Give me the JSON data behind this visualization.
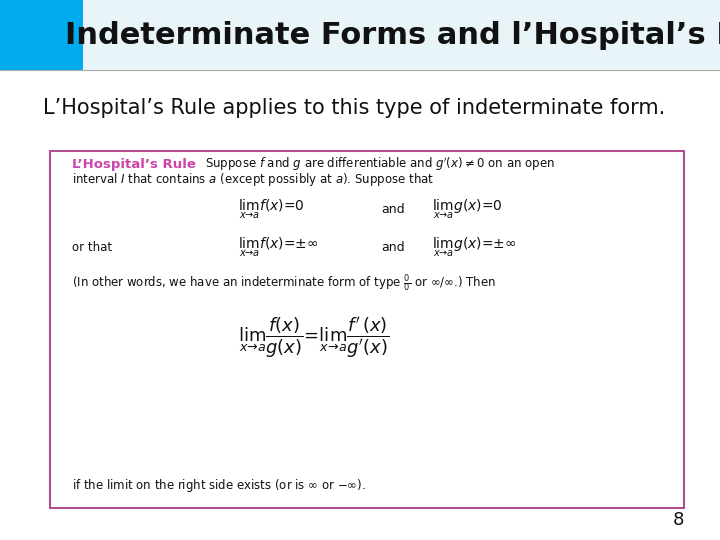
{
  "title": "Indeterminate Forms and l’Hospital’s Rule",
  "subtitle": "L’Hospital’s Rule applies to this type of indeterminate form.",
  "title_bg_color": "#e8f4f8",
  "title_accent_color": "#00aced",
  "title_stripe_color": "#00aced",
  "page_number": "8",
  "bg_color": "#ffffff",
  "box_border_color": "#b05090",
  "box_bg_color": "#ffffff",
  "label_color": "#cc44aa",
  "title_font_size": 22,
  "subtitle_font_size": 15,
  "body_font_size": 10
}
